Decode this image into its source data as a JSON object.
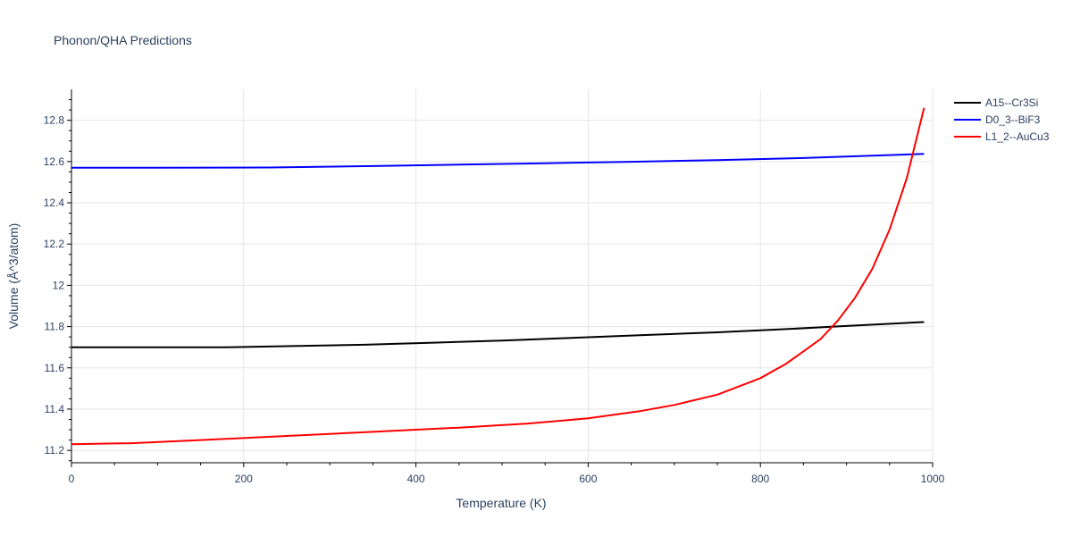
{
  "chart_data": {
    "type": "line",
    "title": "Phonon/QHA Predictions",
    "xlabel": "Temperature (K)",
    "ylabel": "Volume (Å^3/atom)",
    "xlim": [
      0,
      1000
    ],
    "ylim": [
      11.14,
      12.95
    ],
    "x_ticks": [
      0,
      200,
      400,
      600,
      800,
      1000
    ],
    "x_tick_labels": [
      "0",
      "200",
      "400",
      "600",
      "800",
      "1000"
    ],
    "y_ticks": [
      11.2,
      11.4,
      11.6,
      11.8,
      12,
      12.2,
      12.4,
      12.6,
      12.8
    ],
    "y_tick_labels": [
      "11.2",
      "11.4",
      "11.6",
      "11.8",
      "12",
      "12.2",
      "12.4",
      "12.6",
      "12.8"
    ],
    "grid": true,
    "legend_position": "top-right",
    "series": [
      {
        "name": "A15--Cr3Si",
        "color": "#000000",
        "x": [
          0,
          100,
          180,
          250,
          340,
          420,
          500,
          580,
          660,
          750,
          830,
          900,
          990
        ],
        "y": [
          11.7,
          11.7,
          11.7,
          11.705,
          11.712,
          11.722,
          11.732,
          11.745,
          11.758,
          11.772,
          11.788,
          11.803,
          11.822
        ]
      },
      {
        "name": "D0_3--BiF3",
        "color": "#0000ff",
        "x": [
          0,
          100,
          230,
          350,
          450,
          550,
          650,
          750,
          850,
          990
        ],
        "y": [
          12.57,
          12.57,
          12.571,
          12.578,
          12.585,
          12.592,
          12.599,
          12.607,
          12.617,
          12.637
        ]
      },
      {
        "name": "L1_2--AuCu3",
        "color": "#ff0000",
        "x": [
          0,
          70,
          150,
          250,
          350,
          450,
          530,
          600,
          660,
          700,
          750,
          800,
          830,
          850,
          870,
          890,
          910,
          930,
          950,
          970,
          990
        ],
        "y": [
          11.23,
          11.235,
          11.25,
          11.27,
          11.29,
          11.31,
          11.33,
          11.355,
          11.39,
          11.42,
          11.47,
          11.55,
          11.62,
          11.68,
          11.74,
          11.83,
          11.94,
          12.08,
          12.27,
          12.52,
          12.86
        ]
      }
    ]
  }
}
